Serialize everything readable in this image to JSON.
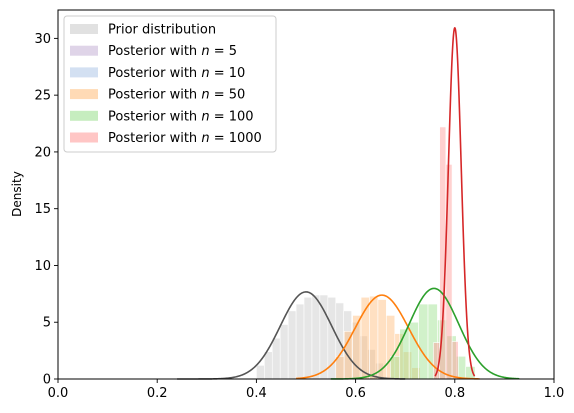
{
  "chart_data": {
    "type": "area",
    "title": "",
    "xlabel": "",
    "ylabel": "Density",
    "xlim": [
      0.0,
      1.0
    ],
    "ylim": [
      0,
      32.5
    ],
    "x_ticks": [
      "0.0",
      "0.2",
      "0.4",
      "0.6",
      "0.8",
      "1.0"
    ],
    "y_ticks": [
      "0",
      "5",
      "10",
      "15",
      "20",
      "25",
      "30"
    ],
    "grid": false,
    "legend_position": "upper-left",
    "series": [
      {
        "name": "Prior distribution",
        "color": "#555555",
        "fill": "#c8c8c8",
        "mean": 0.5,
        "sd": 0.052,
        "xmin": 0.24,
        "xmax": 0.7,
        "hist": {
          "start": 0.4,
          "width": 0.016,
          "heights": [
            1.2,
            2.4,
            3.6,
            4.8,
            6.0,
            6.6,
            7.2,
            7.4,
            7.4,
            7.2,
            6.7,
            6.0,
            5.0,
            3.8,
            2.6,
            1.4
          ]
        }
      },
      {
        "name": "Posterior with $n = 5$",
        "color": "#9467bd",
        "fill": "#c5b0d5",
        "mean": null,
        "sd": null,
        "xmin": null,
        "xmax": null,
        "hist": null
      },
      {
        "name": "Posterior with $n = 10$",
        "color": "#1f77b4",
        "fill": "#aec7e8",
        "mean": null,
        "sd": null,
        "xmin": null,
        "xmax": null,
        "hist": null
      },
      {
        "name": "Posterior with $n = 50$",
        "color": "#ff7f0e",
        "fill": "#ffbb78",
        "mean": 0.653,
        "sd": 0.054,
        "xmin": 0.48,
        "xmax": 0.85,
        "hist": {
          "start": 0.56,
          "width": 0.017,
          "heights": [
            2.0,
            4.2,
            5.6,
            7.2,
            7.3,
            7.0,
            5.6,
            4.0,
            2.4,
            1.0
          ]
        }
      },
      {
        "name": "Posterior with $n = 100$",
        "color": "#2ca02c",
        "fill": "#98df8a",
        "mean": 0.758,
        "sd": 0.05,
        "xmin": 0.55,
        "xmax": 0.93,
        "hist": {
          "start": 0.67,
          "width": 0.019,
          "heights": [
            2.0,
            4.4,
            5.0,
            6.6,
            6.6,
            5.2,
            3.8,
            2.0,
            1.1
          ]
        }
      },
      {
        "name": "Posterior with $n = 1000$",
        "color": "#d62728",
        "fill": "#ff9896",
        "mean": 0.8,
        "sd": 0.0129,
        "xmin": 0.76,
        "xmax": 0.84,
        "hist": {
          "start": 0.757,
          "width": 0.0125,
          "heights": [
            3.2,
            22.2,
            18.9,
            3.3
          ]
        }
      }
    ]
  }
}
